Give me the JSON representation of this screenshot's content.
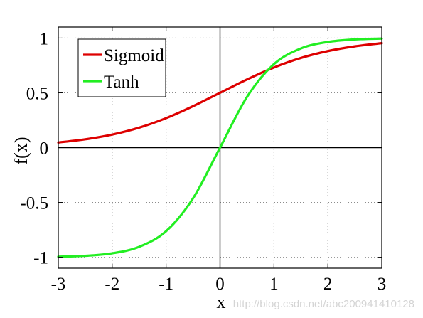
{
  "chart_data": {
    "type": "line",
    "title": "",
    "xlabel": "x",
    "ylabel": "f(x)",
    "xlim": [
      -3,
      3
    ],
    "ylim": [
      -1.1,
      1.1
    ],
    "xticks": [
      -3,
      -2,
      -1,
      0,
      1,
      2,
      3
    ],
    "yticks": [
      -1,
      -0.5,
      0,
      0.5,
      1
    ],
    "xtick_labels": [
      "-3",
      "-2",
      "-1",
      "0",
      "1",
      "2",
      "3"
    ],
    "ytick_labels": [
      "-1",
      "-0.5",
      "0",
      "0.5",
      "1"
    ],
    "grid": true,
    "grid_style": "dotted",
    "legend_position": "top-left",
    "axis_lines_at_origin": true,
    "series": [
      {
        "name": "Sigmoid",
        "color": "#dd0000",
        "x": [
          -3,
          -2.5,
          -2,
          -1.5,
          -1,
          -0.5,
          0,
          0.5,
          1,
          1.5,
          2,
          2.5,
          3
        ],
        "y": [
          0.047,
          0.076,
          0.119,
          0.182,
          0.269,
          0.378,
          0.5,
          0.622,
          0.731,
          0.818,
          0.881,
          0.924,
          0.953
        ]
      },
      {
        "name": "Tanh",
        "color": "#22ee22",
        "x": [
          -3,
          -2.5,
          -2,
          -1.5,
          -1,
          -0.5,
          0,
          0.5,
          1,
          1.5,
          2,
          2.5,
          3
        ],
        "y": [
          -0.995,
          -0.987,
          -0.964,
          -0.905,
          -0.762,
          -0.462,
          0,
          0.462,
          0.762,
          0.905,
          0.964,
          0.987,
          0.995
        ]
      }
    ]
  },
  "watermark": "http://blog.csdn.net/abc200941410128"
}
